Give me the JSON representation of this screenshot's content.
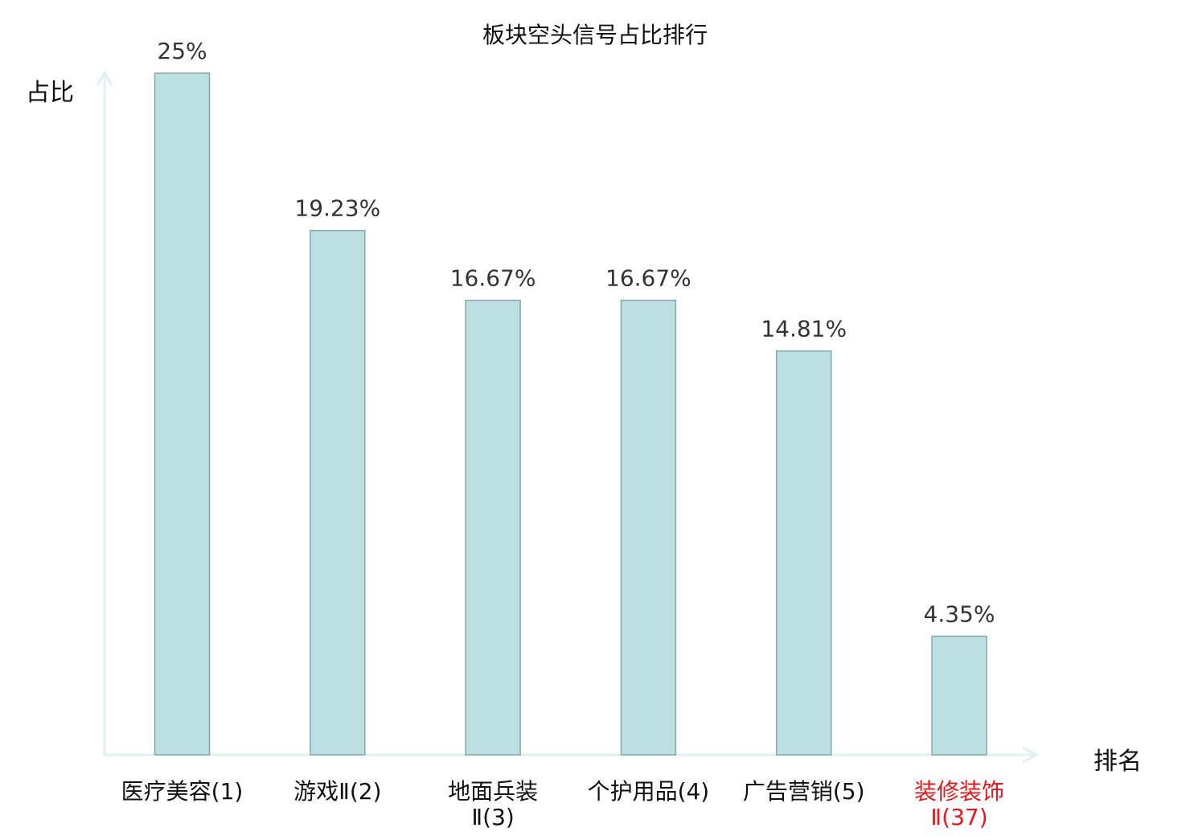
{
  "chart_data": {
    "type": "bar",
    "title": "板块空头信号占比排行",
    "ylabel": "占比",
    "xlabel": "排名",
    "categories": [
      [
        "医疗美容(1)"
      ],
      [
        "游戏Ⅱ(2)"
      ],
      [
        "地面兵装",
        "Ⅱ(3)"
      ],
      [
        "个护用品(4)"
      ],
      [
        "广告营销(5)"
      ],
      [
        "装修装饰",
        "Ⅱ(37)"
      ]
    ],
    "values": [
      25,
      19.23,
      16.67,
      16.67,
      14.81,
      4.35
    ],
    "value_labels": [
      "25%",
      "19.23%",
      "16.67%",
      "16.67%",
      "14.81%",
      "4.35%"
    ],
    "ylim": [
      0,
      25
    ],
    "grid": false,
    "legend": "none",
    "highlight_index": 5,
    "colors": {
      "bar_fill": "#bce0e2",
      "bar_stroke": "#86a9ab",
      "axis": "#dff0ee",
      "highlight_label": "#e0191e",
      "label": "#111111"
    }
  }
}
